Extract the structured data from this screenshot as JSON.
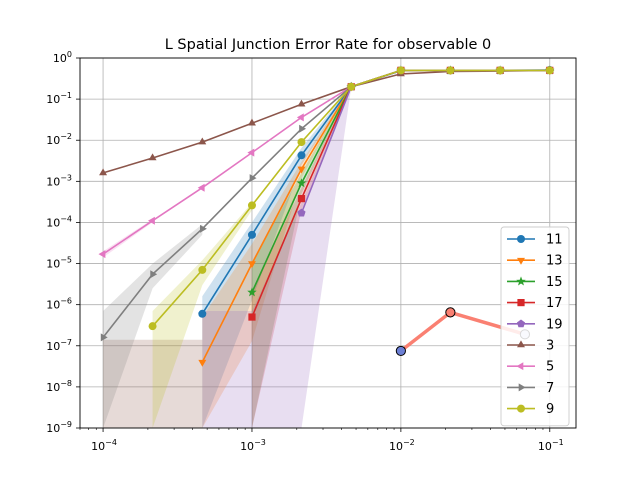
{
  "chart_data": {
    "type": "line",
    "title": "L Spatial Junction Error Rate for observable 0",
    "xlabel": "",
    "ylabel": "",
    "xscale": "log",
    "yscale": "log",
    "xlim": [
      7e-05,
      0.15
    ],
    "ylim": [
      1e-09,
      1
    ],
    "grid": true,
    "legend_position": "lower right",
    "x_ticks": [
      {
        "value": 0.0001,
        "base": "10",
        "exp": "−4"
      },
      {
        "value": 0.001,
        "base": "10",
        "exp": "−3"
      },
      {
        "value": 0.01,
        "base": "10",
        "exp": "−2"
      },
      {
        "value": 0.1,
        "base": "10",
        "exp": "−1"
      }
    ],
    "y_ticks": [
      {
        "value": 1e-09,
        "base": "10",
        "exp": "−9"
      },
      {
        "value": 1e-08,
        "base": "10",
        "exp": "−8"
      },
      {
        "value": 1e-07,
        "base": "10",
        "exp": "−7"
      },
      {
        "value": 1e-06,
        "base": "10",
        "exp": "−6"
      },
      {
        "value": 1e-05,
        "base": "10",
        "exp": "−5"
      },
      {
        "value": 0.0001,
        "base": "10",
        "exp": "−4"
      },
      {
        "value": 0.001,
        "base": "10",
        "exp": "−3"
      },
      {
        "value": 0.01,
        "base": "10",
        "exp": "−2"
      },
      {
        "value": 0.1,
        "base": "10",
        "exp": "−1"
      },
      {
        "value": 1,
        "base": "10",
        "exp": "0"
      }
    ],
    "series": [
      {
        "name": "11",
        "color": "#1f77b4",
        "marker": "circle",
        "points": [
          [
            0.000464,
            6e-07
          ],
          [
            0.001,
            5e-05
          ],
          [
            0.00215,
            0.0043
          ],
          [
            0.00464,
            0.2
          ],
          [
            0.01,
            0.49
          ],
          [
            0.0215,
            0.5
          ],
          [
            0.0464,
            0.5
          ],
          [
            0.1,
            0.51
          ]
        ],
        "band": [
          [
            0.000464,
            1e-09,
            1.6e-06
          ],
          [
            0.001,
            1.3e-06,
            0.0001
          ],
          [
            0.00215,
            0.0025,
            0.0065
          ],
          [
            0.00464,
            0.19,
            0.21
          ]
        ]
      },
      {
        "name": "13",
        "color": "#ff7f0e",
        "marker": "triangle-down",
        "points": [
          [
            0.000464,
            4e-08
          ],
          [
            0.001,
            1e-05
          ],
          [
            0.00215,
            0.002
          ],
          [
            0.00464,
            0.2
          ],
          [
            0.01,
            0.5
          ],
          [
            0.0215,
            0.5
          ],
          [
            0.0464,
            0.5
          ],
          [
            0.1,
            0.5
          ]
        ],
        "band": [
          [
            0.000464,
            1e-09,
            5e-07
          ],
          [
            0.001,
            1.3e-07,
            3e-05
          ],
          [
            0.00215,
            0.0012,
            0.003
          ],
          [
            0.00464,
            0.19,
            0.21
          ]
        ]
      },
      {
        "name": "15",
        "color": "#2ca02c",
        "marker": "star",
        "points": [
          [
            0.001,
            2e-06
          ],
          [
            0.00215,
            0.0009
          ],
          [
            0.00464,
            0.2
          ],
          [
            0.01,
            0.5
          ],
          [
            0.0215,
            0.5
          ],
          [
            0.0464,
            0.5
          ],
          [
            0.1,
            0.5
          ]
        ],
        "band": [
          [
            0.001,
            1e-09,
            1e-05
          ],
          [
            0.00215,
            0.0005,
            0.0016
          ],
          [
            0.00464,
            0.19,
            0.21
          ]
        ]
      },
      {
        "name": "17",
        "color": "#d62728",
        "marker": "square",
        "points": [
          [
            0.001,
            5e-07
          ],
          [
            0.00215,
            0.00038
          ],
          [
            0.00464,
            0.2
          ],
          [
            0.01,
            0.5
          ],
          [
            0.0215,
            0.5
          ],
          [
            0.0464,
            0.5
          ],
          [
            0.1,
            0.5
          ]
        ],
        "band": [
          [
            0.001,
            1e-09,
            2e-06
          ],
          [
            0.00215,
            0.0002,
            0.0007
          ],
          [
            0.00464,
            0.19,
            0.21
          ]
        ]
      },
      {
        "name": "19",
        "color": "#9467bd",
        "marker": "pentagon",
        "points": [
          [
            0.00215,
            0.00017
          ],
          [
            0.00464,
            0.2
          ],
          [
            0.01,
            0.5
          ],
          [
            0.0215,
            0.5
          ],
          [
            0.0464,
            0.5
          ],
          [
            0.1,
            0.5
          ]
        ],
        "band": [
          [
            0.000464,
            1e-09,
            7e-07
          ],
          [
            0.001,
            1e-09,
            7e-07
          ],
          [
            0.00215,
            1e-09,
            0.0003
          ],
          [
            0.00464,
            0.19,
            0.21
          ]
        ]
      },
      {
        "name": "3",
        "color": "#8c564b",
        "marker": "triangle-up",
        "points": [
          [
            0.0001,
            0.0016
          ],
          [
            0.000215,
            0.0037
          ],
          [
            0.000464,
            0.009
          ],
          [
            0.001,
            0.026
          ],
          [
            0.00215,
            0.075
          ],
          [
            0.00464,
            0.2
          ],
          [
            0.01,
            0.41
          ],
          [
            0.0215,
            0.47
          ],
          [
            0.0464,
            0.48
          ],
          [
            0.1,
            0.5
          ]
        ],
        "band": [
          [
            0.0001,
            1e-09,
            1.4e-07
          ],
          [
            0.000215,
            1e-09,
            1.4e-07
          ],
          [
            0.000464,
            1e-09,
            1.4e-07
          ]
        ]
      },
      {
        "name": "5",
        "color": "#e377c2",
        "marker": "triangle-left",
        "points": [
          [
            0.0001,
            1.7e-05
          ],
          [
            0.000215,
            0.00011
          ],
          [
            0.000464,
            0.0007
          ],
          [
            0.001,
            0.005
          ],
          [
            0.00215,
            0.036
          ],
          [
            0.00464,
            0.2
          ],
          [
            0.01,
            0.5
          ],
          [
            0.0215,
            0.5
          ],
          [
            0.0464,
            0.5
          ],
          [
            0.1,
            0.5
          ]
        ],
        "band": [
          [
            0.0001,
            1.4e-05,
            2e-05
          ],
          [
            0.000215,
            0.0001,
            0.00012
          ]
        ]
      },
      {
        "name": "7",
        "color": "#7f7f7f",
        "marker": "triangle-right",
        "points": [
          [
            0.0001,
            1.6e-07
          ],
          [
            0.000215,
            5.5e-06
          ],
          [
            0.000464,
            7e-05
          ],
          [
            0.001,
            0.0012
          ],
          [
            0.00215,
            0.019
          ],
          [
            0.00464,
            0.2
          ],
          [
            0.01,
            0.5
          ],
          [
            0.0215,
            0.5
          ],
          [
            0.0464,
            0.5
          ],
          [
            0.1,
            0.5
          ]
        ],
        "band": [
          [
            0.0001,
            1e-09,
            7e-07
          ],
          [
            0.000215,
            2.5e-06,
            1e-05
          ],
          [
            0.000464,
            5e-05,
            9e-05
          ]
        ]
      },
      {
        "name": "9",
        "color": "#bcbd22",
        "marker": "circle",
        "points": [
          [
            0.000215,
            3e-07
          ],
          [
            0.000464,
            7e-06
          ],
          [
            0.001,
            0.00026
          ],
          [
            0.00215,
            0.009
          ],
          [
            0.00464,
            0.2
          ],
          [
            0.01,
            0.5
          ],
          [
            0.0215,
            0.5
          ],
          [
            0.0464,
            0.5
          ],
          [
            0.1,
            0.5
          ]
        ],
        "band": [
          [
            0.000215,
            1e-09,
            7e-07
          ],
          [
            0.000464,
            3e-06,
            1.2e-05
          ],
          [
            0.001,
            0.0002,
            0.0003
          ]
        ]
      }
    ],
    "extra_series": {
      "color": "#fa8072",
      "points": [
        {
          "x": 0.01,
          "y": 7.5e-08,
          "face": "#6c7fd4"
        },
        {
          "x": 0.0215,
          "y": 6.5e-07,
          "face": "#fa8072"
        },
        {
          "x": 0.0681,
          "y": 1.9e-07,
          "face": "#d6dcf4"
        }
      ]
    }
  }
}
